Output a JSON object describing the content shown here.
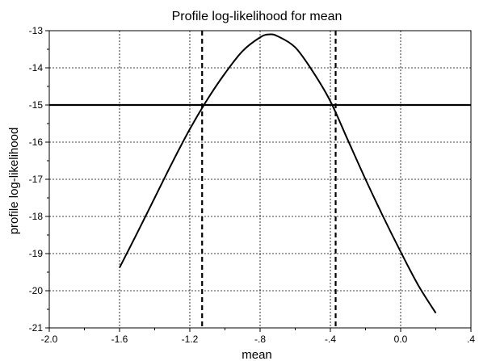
{
  "chart_data": {
    "type": "line",
    "title": "Profile log-likelihood for mean",
    "xlabel": "mean",
    "ylabel": "profile log-likelihood",
    "xlim": [
      -2.0,
      0.4
    ],
    "ylim": [
      -21,
      -13
    ],
    "x_ticks": [
      "-2.0",
      "-1.6",
      "-1.2",
      "-.8",
      "-.4",
      "0.0",
      ".4"
    ],
    "y_ticks": [
      "-13",
      "-14",
      "-15",
      "-16",
      "-17",
      "-18",
      "-19",
      "-20",
      "-21"
    ],
    "grid": true,
    "series": [
      {
        "x": [
          -1.6,
          -1.5,
          -1.4,
          -1.3,
          -1.2,
          -1.1,
          -1.0,
          -0.9,
          -0.8,
          -0.75,
          -0.7,
          -0.6,
          -0.5,
          -0.4,
          -0.3,
          -0.2,
          -0.1,
          0.0,
          0.1,
          0.2
        ],
        "y": [
          -19.38,
          -18.45,
          -17.5,
          -16.55,
          -15.65,
          -14.85,
          -14.15,
          -13.55,
          -13.18,
          -13.1,
          -13.15,
          -13.45,
          -14.1,
          -14.9,
          -15.95,
          -17.0,
          -18.0,
          -18.95,
          -19.85,
          -20.6
        ]
      }
    ],
    "reference_lines": [
      {
        "orientation": "horizontal",
        "value": -15,
        "style": "solid"
      },
      {
        "orientation": "vertical",
        "value": -1.13,
        "style": "dashed"
      },
      {
        "orientation": "vertical",
        "value": -0.37,
        "style": "dashed"
      }
    ]
  }
}
